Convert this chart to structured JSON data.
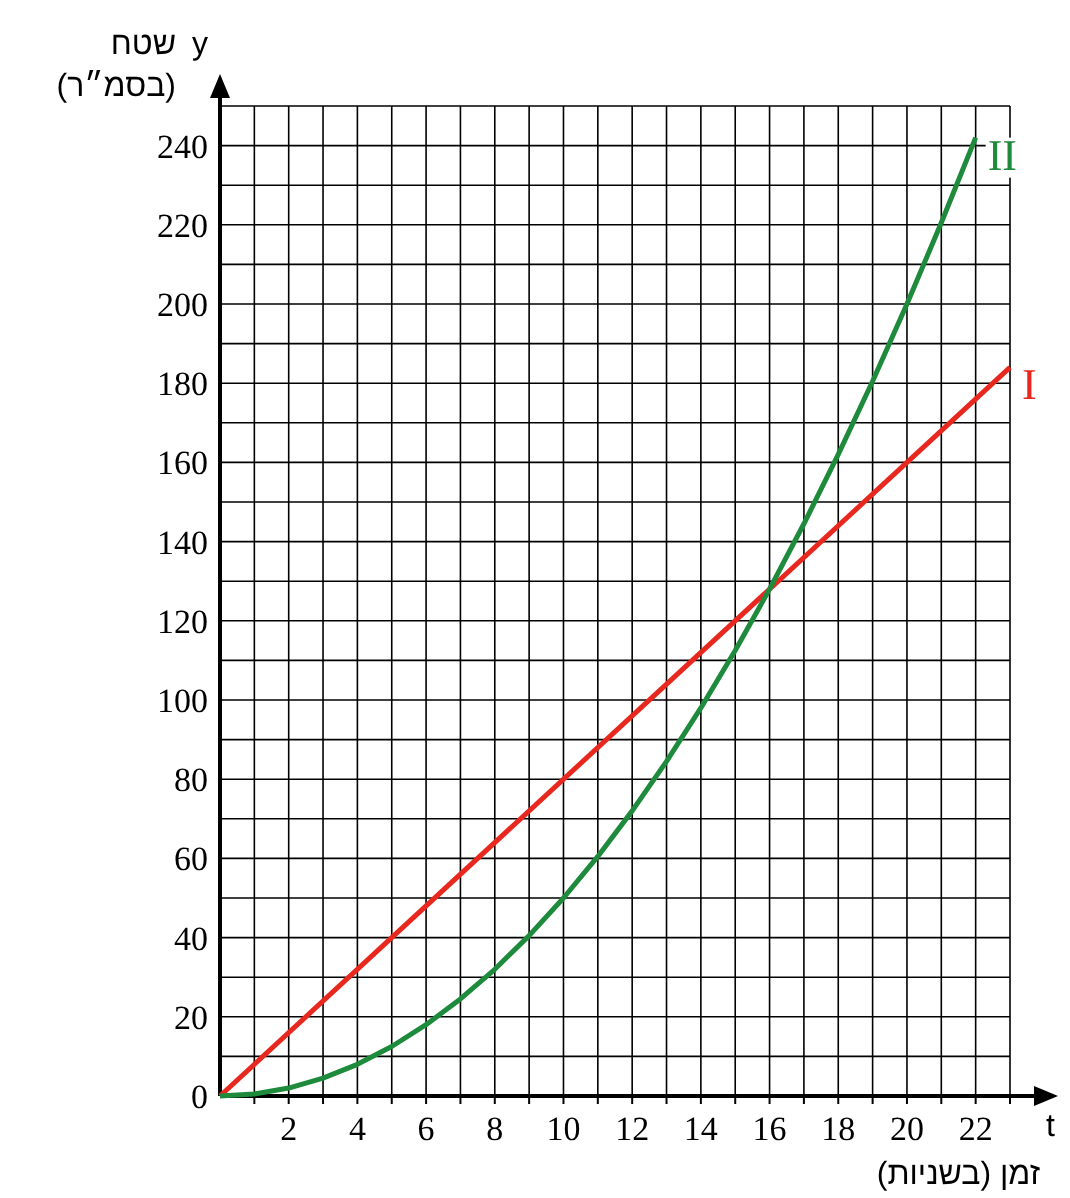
{
  "chart_data": {
    "type": "line",
    "xlabel": "t",
    "ylabel": "y",
    "annotations": [
      "שטח (בסמ״ר)",
      "זמן (בשניות)"
    ],
    "xlim": [
      0,
      23
    ],
    "ylim": [
      0,
      250
    ],
    "xticks": [
      {
        "value": 1,
        "label": null
      },
      2,
      {
        "value": 3,
        "label": null
      },
      4,
      {
        "value": 5,
        "label": null
      },
      6,
      {
        "value": 7,
        "label": null
      },
      8,
      {
        "value": 9,
        "label": null
      },
      10,
      {
        "value": 11,
        "label": null
      },
      12,
      {
        "value": 13,
        "label": null
      },
      14,
      {
        "value": 15,
        "label": null
      },
      16,
      {
        "value": 17,
        "label": null
      },
      18,
      {
        "value": 19,
        "label": null
      },
      20,
      {
        "value": 21,
        "label": null
      },
      22,
      {
        "value": 23,
        "label": null
      }
    ],
    "yticks": [
      0,
      {
        "value": 10,
        "label": null
      },
      20,
      {
        "value": 30,
        "label": null
      },
      40,
      {
        "value": 50,
        "label": null
      },
      60,
      {
        "value": 70,
        "label": null
      },
      80,
      {
        "value": 90,
        "label": null
      },
      100,
      {
        "value": 110,
        "label": null
      },
      120,
      {
        "value": 130,
        "label": null
      },
      140,
      {
        "value": 150,
        "label": null
      },
      160,
      {
        "value": 170,
        "label": null
      },
      180,
      {
        "value": 190,
        "label": null
      },
      200,
      {
        "value": 210,
        "label": null
      },
      220,
      {
        "value": 230,
        "label": null
      },
      240,
      {
        "value": 250,
        "label": null
      }
    ],
    "grid": true,
    "marker": "none",
    "line_style": "solid",
    "series": [
      {
        "name": "I",
        "color": "#e8281e",
        "x": [
          0,
          23
        ],
        "values": [
          0,
          184
        ]
      },
      {
        "name": "II",
        "color": "#1e8a3c",
        "x": [
          0,
          1,
          2,
          3,
          4,
          5,
          6,
          7,
          8,
          9,
          10,
          11,
          12,
          13,
          14,
          15,
          16,
          17,
          18,
          19,
          20,
          21,
          22
        ],
        "values": [
          0,
          0.5,
          2,
          4.5,
          8,
          12.5,
          18,
          24.5,
          32,
          40.5,
          50,
          60.5,
          72,
          84.5,
          98,
          112.5,
          128,
          144.5,
          162,
          180.5,
          200,
          220.5,
          242
        ]
      }
    ]
  }
}
